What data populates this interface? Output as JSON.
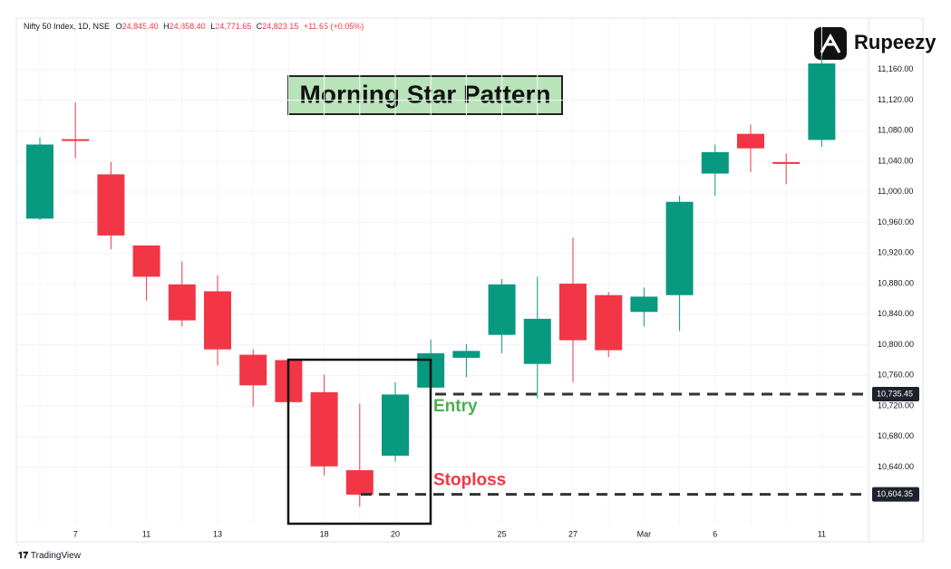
{
  "chart_data": {
    "type": "candlestick",
    "header": {
      "symbol": "Nifty 50 Index, 1D, NSE",
      "fields": [
        {
          "label": "O",
          "value": "24,845.40"
        },
        {
          "label": "H",
          "value": "24,858.40"
        },
        {
          "label": "L",
          "value": "24,771.65"
        },
        {
          "label": "C",
          "value": "24,823.15"
        }
      ],
      "change": "+11.65 (+0.05%)"
    },
    "title": "Morning Star Pattern",
    "brand": "Rupeezy",
    "footer": "TradingView",
    "categories": [
      null,
      "7",
      null,
      "11",
      null,
      "13",
      null,
      null,
      "18",
      null,
      "20",
      null,
      null,
      "25",
      null,
      "27",
      null,
      "Mar",
      null,
      "6",
      null,
      null,
      "11"
    ],
    "open": [
      10965,
      11069,
      11023,
      10930,
      10879,
      10870,
      10787,
      10780,
      10738,
      10636,
      10655,
      10744,
      10783,
      10813,
      10775,
      10880,
      10865,
      10843,
      10865,
      11024,
      11076,
      11039,
      11068
    ],
    "high": [
      11071,
      11117,
      11039,
      10930,
      10909,
      10891,
      10794,
      10782,
      10761,
      10723,
      10751,
      10807,
      10801,
      10886,
      10889,
      10940,
      10869,
      10875,
      10995,
      11062,
      11088,
      11050,
      11178
    ],
    "low": [
      10963,
      11044,
      10925,
      10858,
      10824,
      10773,
      10719,
      10722,
      10629,
      10588,
      10647,
      10744,
      10758,
      10789,
      10730,
      10751,
      10784,
      10824,
      10818,
      10995,
      11026,
      11010,
      11059
    ],
    "close": [
      11062,
      11068,
      10943,
      10889,
      10832,
      10794,
      10747,
      10725,
      10641,
      10604,
      10735,
      10789,
      10792,
      10879,
      10834,
      10806,
      10793,
      10863,
      10987,
      11052,
      11057,
      11037,
      11168
    ],
    "up_color": "#089981",
    "down_color": "#f23645",
    "ylim": [
      10566,
      11206
    ],
    "yticks": [
      {
        "value": 10640,
        "label": "10,640.00"
      },
      {
        "value": 10680,
        "label": "10,680.00"
      },
      {
        "value": 10720,
        "label": "10,720.00"
      },
      {
        "value": 10760,
        "label": "10,760.00"
      },
      {
        "value": 10800,
        "label": "10,800.00"
      },
      {
        "value": 10840,
        "label": "10,840.00"
      },
      {
        "value": 10880,
        "label": "10,880.00"
      },
      {
        "value": 10920,
        "label": "10,920.00"
      },
      {
        "value": 10960,
        "label": "10,960.00"
      },
      {
        "value": 11000,
        "label": "11,000.00"
      },
      {
        "value": 11040,
        "label": "11,040.00"
      },
      {
        "value": 11080,
        "label": "11,080.00"
      },
      {
        "value": 11120,
        "label": "11,120.00"
      },
      {
        "value": 11160,
        "label": "11,160.00"
      }
    ],
    "grid": true,
    "price_lines": [
      {
        "value": 10735.45,
        "label": "10,735.45",
        "note": "Entry",
        "note_color": "#4caf50"
      },
      {
        "value": 10604.35,
        "label": "10,604.35",
        "note": "Stoploss",
        "note_color": "#f23645"
      }
    ]
  }
}
